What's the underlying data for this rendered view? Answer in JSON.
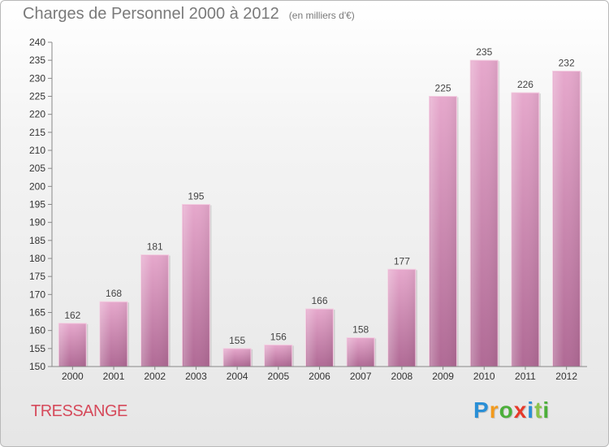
{
  "header": {
    "title": "Charges de Personnel 2000 à 2012",
    "subtitle": "(en milliers d'€)"
  },
  "footer": {
    "commune": "TRESSANGE",
    "brand_letters": [
      "P",
      "r",
      "o",
      "x",
      "i",
      "t",
      "i"
    ],
    "brand_colors": [
      "#2a8fd6",
      "#f29a1c",
      "#4caf3a",
      "#e63a2a",
      "#2a8fd6",
      "#8bc34a",
      "#4caf3a"
    ]
  },
  "chart_data": {
    "type": "bar",
    "title": "Charges de Personnel 2000 à 2012",
    "subtitle": "(en milliers d'€)",
    "categories": [
      "2000",
      "2001",
      "2002",
      "2003",
      "2004",
      "2005",
      "2006",
      "2007",
      "2008",
      "2009",
      "2010",
      "2011",
      "2012"
    ],
    "values": [
      162,
      168,
      181,
      195,
      155,
      156,
      166,
      158,
      177,
      225,
      235,
      226,
      232
    ],
    "ylim": [
      150,
      240
    ],
    "ytick_step": 5,
    "grid": false,
    "bar_color_top": "#e6a8cc",
    "bar_color_bottom": "#b06a95"
  }
}
